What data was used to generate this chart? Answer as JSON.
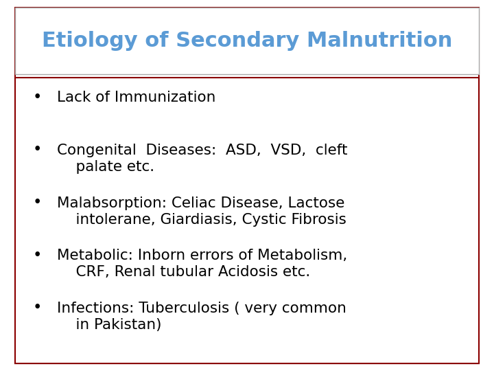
{
  "title": "Etiology of Secondary Malnutrition",
  "title_color": "#5b9bd5",
  "title_fontsize": 22,
  "background_color": "#ffffff",
  "outer_border_color": "#8b0000",
  "title_border_color": "#aaaaaa",
  "bullet_color": "#000000",
  "bullet_fontsize": 15.5,
  "bullets": [
    "Lack of Immunization",
    "Congenital  Diseases:  ASD,  VSD,  cleft\n    palate etc.",
    "Malabsorption: Celiac Disease, Lactose\n    intolerane, Giardiasis, Cystic Fibrosis",
    "Metabolic: Inborn errors of Metabolism,\n    CRF, Renal tubular Acidosis etc.",
    "Infections: Tuberculosis ( very common\n    in Pakistan)"
  ],
  "fig_width": 7.2,
  "fig_height": 5.4,
  "dpi": 100
}
